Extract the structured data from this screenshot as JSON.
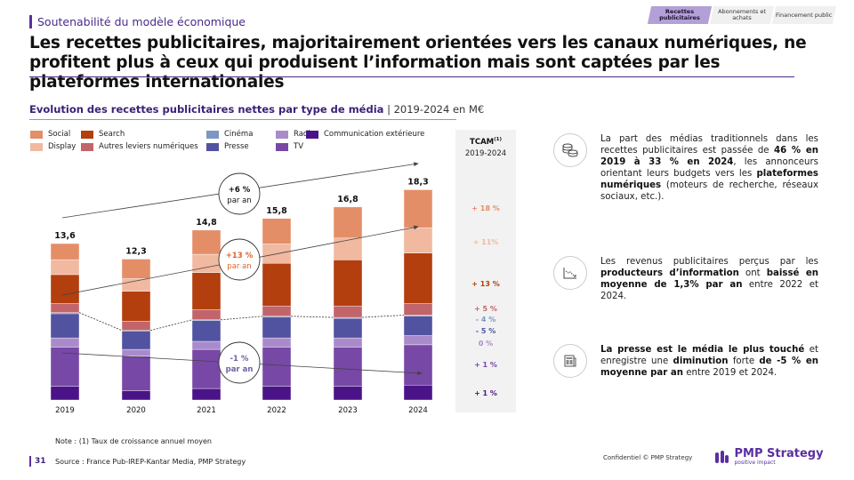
{
  "header": {
    "section": "Soutenabilité du modèle économique",
    "title": "Les recettes publicitaires, majoritairement orientées vers les canaux numériques, ne profitent plus à ceux qui produisent l’information mais sont captées par les plateformes internationales",
    "nav_tabs": [
      {
        "label": "Recettes publicitaires",
        "active": true
      },
      {
        "label": "Abonnements et achats",
        "active": false
      },
      {
        "label": "Financement public",
        "active": false
      }
    ]
  },
  "chart_title": {
    "bold": "Evolution des recettes publicitaires nettes  par type de média",
    "sub": " | 2019-2024 en M€"
  },
  "chart_data": {
    "type": "bar",
    "stacked": true,
    "title": "Evolution des recettes publicitaires nettes par type de média | 2019-2024 en M€",
    "xlabel": "",
    "ylabel": "M€",
    "categories": [
      "2019",
      "2020",
      "2021",
      "2022",
      "2023",
      "2024"
    ],
    "totals": [
      "13,6",
      "12,3",
      "14,8",
      "15,8",
      "16,8",
      "18,3"
    ],
    "series": [
      {
        "name": "Communication extérieure",
        "color": "#4a1488",
        "values": [
          1.2,
          0.8,
          1.0,
          1.2,
          1.2,
          1.3
        ]
      },
      {
        "name": "TV",
        "color": "#7748a6",
        "values": [
          3.4,
          3.0,
          3.4,
          3.4,
          3.4,
          3.5
        ]
      },
      {
        "name": "Radio",
        "color": "#a98bcc",
        "values": [
          0.8,
          0.6,
          0.7,
          0.8,
          0.8,
          0.8
        ]
      },
      {
        "name": "Presse",
        "color": "#5153a0",
        "values": [
          2.1,
          1.6,
          1.8,
          1.8,
          1.7,
          1.7
        ]
      },
      {
        "name": "Cinéma",
        "color": "#7d96c4",
        "values": [
          0.1,
          0.05,
          0.07,
          0.08,
          0.08,
          0.08
        ]
      },
      {
        "name": "Autres leviers numériques",
        "color": "#c2656a",
        "values": [
          0.8,
          0.8,
          0.9,
          0.9,
          1.0,
          1.0
        ]
      },
      {
        "name": "Search",
        "color": "#b33e0e",
        "values": [
          2.5,
          2.6,
          3.2,
          3.7,
          4.0,
          4.4
        ]
      },
      {
        "name": "Display",
        "color": "#f0b9a0",
        "values": [
          1.3,
          1.1,
          1.6,
          1.7,
          1.9,
          2.2
        ]
      },
      {
        "name": "Social",
        "color": "#e48e68",
        "values": [
          1.4,
          1.7,
          2.1,
          2.2,
          2.7,
          3.3
        ]
      }
    ],
    "ylim": [
      0,
      18.3
    ],
    "grid": false,
    "legend": "top",
    "annotations": [
      {
        "label_top": "+6 %",
        "label_bottom": "par an",
        "color": "#111111",
        "target": "total"
      },
      {
        "label_top": "+13 %",
        "label_bottom": "par an",
        "color": "#e0642c",
        "target": "digital"
      },
      {
        "label_top": "-1 %",
        "label_bottom": "par an",
        "color": "#6a64a8",
        "target": "traditional"
      }
    ],
    "tcam": {
      "header": "TCAM",
      "sup": "(1)",
      "period": "2019-2024",
      "values": [
        {
          "series": "Social",
          "label": "+ 18 %",
          "color": "#e48e68"
        },
        {
          "series": "Display",
          "label": "+ 11%",
          "color": "#f0b9a0"
        },
        {
          "series": "Search",
          "label": "+ 13 %",
          "color": "#b33e0e"
        },
        {
          "series": "Autres leviers numériques",
          "label": "+ 5 %",
          "color": "#c2656a"
        },
        {
          "series": "Cinéma",
          "label": "- 4 %",
          "color": "#7d96c4"
        },
        {
          "series": "Presse",
          "label": "- 5 %",
          "color": "#5153a0"
        },
        {
          "series": "Radio",
          "label": "0 %",
          "color": "#a98bcc"
        },
        {
          "series": "TV",
          "label": "+ 1 %",
          "color": "#7748a6"
        },
        {
          "series": "Communication extérieure",
          "label": "+ 1 %",
          "color": "#4a1488"
        }
      ]
    }
  },
  "legend": [
    {
      "label": "Social",
      "color": "#e48e68"
    },
    {
      "label": "Display",
      "color": "#f0b9a0"
    },
    {
      "label": "Search",
      "color": "#b33e0e"
    },
    {
      "label": "Autres leviers numériques",
      "color": "#c2656a"
    },
    {
      "label": "Cinéma",
      "color": "#7d96c4"
    },
    {
      "label": "Presse",
      "color": "#5153a0"
    },
    {
      "label": "Radio",
      "color": "#a98bcc"
    },
    {
      "label": "TV",
      "color": "#7748a6"
    },
    {
      "label": "Communication extérieure",
      "color": "#4a1488"
    }
  ],
  "insights": [
    {
      "icon": "coins-icon",
      "parts": [
        [
          "",
          "La part des médias traditionnels dans les recettes publicitaires est passée de "
        ],
        [
          "b",
          "46 % en 2019 à 33 % en 2024"
        ],
        [
          "",
          ", les annonceurs orientant leurs budgets vers les "
        ],
        [
          "b",
          "plateformes numériques"
        ],
        [
          "",
          " (moteurs de recherche, réseaux sociaux, etc.)."
        ]
      ]
    },
    {
      "icon": "declining-chart-icon",
      "parts": [
        [
          "",
          "Les revenus publicitaires perçus par les "
        ],
        [
          "b",
          "producteurs d’information"
        ],
        [
          "",
          " ont "
        ],
        [
          "b",
          "baissé en moyenne de 1,3% par an"
        ],
        [
          "",
          " entre 2022 et 2024."
        ]
      ]
    },
    {
      "icon": "newspaper-icon",
      "parts": [
        [
          "b",
          "La presse est le média le plus touché"
        ],
        [
          "",
          " et enregistre une "
        ],
        [
          "b",
          "diminution"
        ],
        [
          "",
          " forte "
        ],
        [
          "b",
          "de -5 % en moyenne par an"
        ],
        [
          "",
          " entre 2019 et 2024."
        ]
      ]
    }
  ],
  "footer": {
    "note": "Note : (1) Taux de croissance annuel moyen",
    "page_number": "31",
    "source": "Source : France Pub-IREP-Kantar Media, PMP Strategy",
    "confidential": "Confidentiel © PMP Strategy",
    "logo_name": "PMP Strategy",
    "logo_tagline": "positive impact"
  }
}
